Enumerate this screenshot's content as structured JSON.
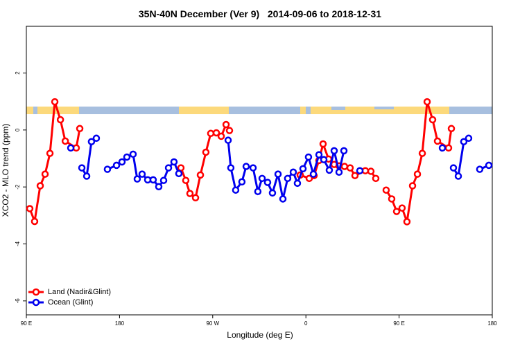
{
  "chart_data": {
    "type": "line",
    "title": "35N-40N December (Ver 9)   2014-09-06 to 2018-12-31",
    "x_label": "Longitude (deg E)",
    "y_label": "XCO2 - MLO trend (ppm)",
    "xlim": [
      90,
      540
    ],
    "xticks": [
      {
        "value": 90,
        "label": "90 E"
      },
      180,
      {
        "value": 270,
        "label": "90 W"
      },
      {
        "value": 360,
        "label": "0"
      },
      {
        "value": 450,
        "label": "90 E"
      },
      {
        "value": 540,
        "label": "180"
      }
    ],
    "ylim": [
      -6.49,
      3.64
    ],
    "yticks": [
      -6,
      -4,
      -2,
      0,
      2
    ],
    "legend": "bottomleft",
    "series": [
      {
        "name": "Land (Nadir&Glint)",
        "color": "#ff0000",
        "x": [
          93.3,
          98.0,
          103.4,
          108.1,
          112.8,
          117.5,
          122.9,
          127.6,
          138.2,
          141.6,
          198.5,
          239.3,
          244.0,
          248.0,
          253.4,
          258.1,
          263.4,
          268.1,
          273.5,
          278.2,
          282.9,
          286.2,
          319,
          354.5,
          363.2,
          367.9,
          372.6,
          376.6,
          381.9,
          387.3,
          392.0,
          397.3,
          402.7,
          407.4,
          417.4,
          422.8,
          427.5,
          432.8,
          437.5,
          442.9,
          447.6,
          452.9,
          457.6,
          463.0,
          467.7,
          472.4,
          477.1,
          482.4,
          487.1,
          497.8,
          500.5
        ],
        "values": [
          -2.76,
          -3.21,
          -1.96,
          -1.55,
          -0.82,
          0.99,
          0.36,
          -0.39,
          -0.63,
          0.05,
          null,
          -1.33,
          -1.77,
          -2.23,
          -2.38,
          -1.58,
          -0.78,
          -0.12,
          -0.1,
          -0.22,
          0.19,
          -0.02,
          null,
          -1.58,
          -1.7,
          -1.6,
          -1.07,
          -0.49,
          -1.02,
          -1.21,
          -1.26,
          -1.28,
          -1.33,
          -1.6,
          -1.43,
          -1.45,
          -1.7,
          null,
          -2.11,
          -2.42,
          -2.86,
          -2.74,
          -3.22,
          -1.96,
          -1.55,
          -0.82,
          0.99,
          0.36,
          -0.39,
          -0.63,
          0.05
        ]
      },
      {
        "name": "Ocean (Glint)",
        "color": "#0000ee",
        "x": [
          132.9,
          138.2,
          143.6,
          148.3,
          152.9,
          157.6,
          163,
          168.3,
          177.1,
          182.4,
          187.1,
          193.1,
          197.1,
          201.8,
          207.2,
          212.5,
          217.9,
          222.6,
          227.3,
          232.6,
          237.3,
          258.7,
          284.9,
          287.5,
          292.2,
          298.2,
          302.3,
          309.0,
          313.6,
          317.7,
          323.0,
          327.7,
          333.1,
          337.8,
          342.4,
          347.8,
          351.8,
          357.2,
          362.5,
          367.2,
          372.6,
          377.3,
          382.6,
          387.3,
          392.0,
          396.7,
          404.7,
          412.1,
          439.5,
          491.8,
          495.8,
          502.5,
          507.2,
          512.5,
          517.2,
          522.6,
          527.9,
          536.7
        ],
        "values": [
          -0.63,
          null,
          -1.33,
          -1.62,
          -0.41,
          -0.29,
          null,
          -1.38,
          -1.24,
          -1.12,
          -0.95,
          -0.85,
          -1.72,
          -1.55,
          -1.75,
          -1.75,
          -1.99,
          -1.77,
          -1.33,
          -1.12,
          -1.53,
          null,
          -0.36,
          -1.33,
          -2.11,
          -1.82,
          -1.28,
          -1.33,
          -2.16,
          -1.7,
          -1.84,
          -2.21,
          -1.55,
          -2.42,
          -1.7,
          -1.48,
          -1.87,
          -1.36,
          -0.95,
          -1.55,
          -0.87,
          -1.04,
          -1.41,
          -0.73,
          -1.48,
          -0.73,
          null,
          -1.43,
          null,
          -0.63,
          null,
          -1.33,
          -1.62,
          -0.41,
          -0.29,
          null,
          -1.38,
          -1.24
        ]
      }
    ]
  }
}
